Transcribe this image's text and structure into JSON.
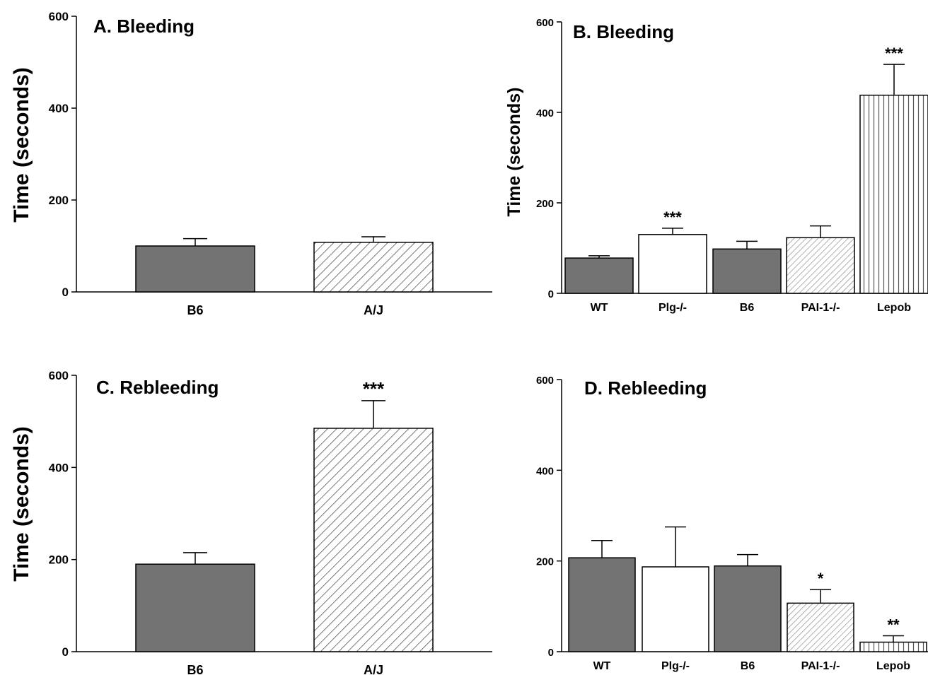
{
  "chart_data": [
    {
      "type": "bar",
      "title": "A. Bleeding",
      "ylabel": "Time (seconds)",
      "ylim": [
        0,
        600
      ],
      "yticks": [
        0,
        200,
        400,
        600
      ],
      "categories": [
        "B6",
        "A/J"
      ],
      "values": [
        100,
        108
      ],
      "errors": [
        16,
        12
      ],
      "significance": [
        "",
        ""
      ],
      "fills": [
        "solid",
        "diagonal"
      ]
    },
    {
      "type": "bar",
      "title": "B. Bleeding",
      "ylabel": "Time (seconds)",
      "ylim": [
        0,
        600
      ],
      "yticks": [
        0,
        200,
        400,
        600
      ],
      "categories": [
        "WT",
        "Plg-/-",
        "B6",
        "PAI-1-/-",
        "Lepob"
      ],
      "values": [
        78,
        130,
        98,
        123,
        438
      ],
      "errors": [
        5,
        14,
        17,
        26,
        68
      ],
      "significance": [
        "",
        "***",
        "",
        "",
        "***"
      ],
      "fills": [
        "solid",
        "white",
        "solid",
        "diagonal",
        "vertical"
      ]
    },
    {
      "type": "bar",
      "title": "C. Rebleeding",
      "ylabel": "Time (seconds)",
      "ylim": [
        0,
        600
      ],
      "yticks": [
        0,
        200,
        400,
        600
      ],
      "categories": [
        "B6",
        "A/J"
      ],
      "values": [
        190,
        485
      ],
      "errors": [
        25,
        60
      ],
      "significance": [
        "",
        "***"
      ],
      "fills": [
        "solid",
        "diagonal"
      ]
    },
    {
      "type": "bar",
      "title": "D. Rebleeding",
      "ylabel": "",
      "ylim": [
        0,
        600
      ],
      "yticks": [
        0,
        200,
        400,
        600
      ],
      "categories": [
        "WT",
        "Plg-/-",
        "B6",
        "PAI-1-/-",
        "Lepob"
      ],
      "values": [
        207,
        187,
        189,
        107,
        21
      ],
      "errors": [
        38,
        88,
        25,
        30,
        14
      ],
      "significance": [
        "",
        "",
        "",
        "*",
        "**"
      ],
      "fills": [
        "solid",
        "white",
        "solid",
        "diagonal",
        "vertical"
      ]
    }
  ],
  "colors": {
    "solid_bar": "#737373",
    "bar_outline": "#000000",
    "hatch_line": "#555555",
    "white_bar": "#ffffff"
  }
}
